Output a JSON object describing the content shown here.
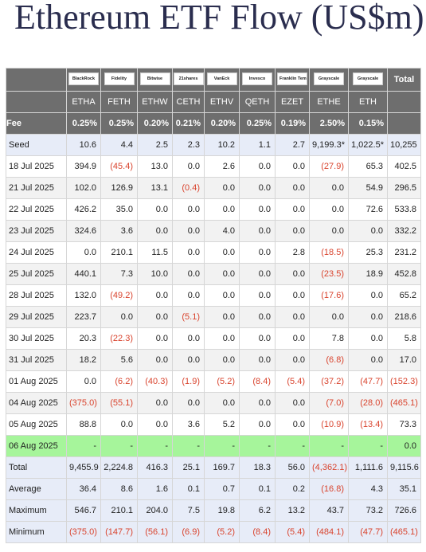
{
  "header": {
    "title": "Ethereum ETF Flow (US$m)"
  },
  "table": {
    "issuers": [
      "BlackRock",
      "Fidelity",
      "Bitwise",
      "21shares",
      "VanEck",
      "Invesco",
      "Franklin Templeton",
      "Grayscale",
      "Grayscale"
    ],
    "total_header": "Total",
    "tickers": [
      "ETHA",
      "FETH",
      "ETHW",
      "CETH",
      "ETHV",
      "QETH",
      "EZET",
      "ETHE",
      "ETH"
    ],
    "fee_label": "Fee",
    "fees": [
      "0.25%",
      "0.25%",
      "0.20%",
      "0.21%",
      "0.20%",
      "0.25%",
      "0.19%",
      "2.50%",
      "0.15%"
    ],
    "rows": [
      [
        "Seed",
        "10.6",
        "4.4",
        "2.5",
        "2.3",
        "10.2",
        "1.1",
        "2.7",
        "9,199.3*",
        "1,022.5*",
        "10,255"
      ],
      [
        "18 Jul 2025",
        "394.9",
        "(45.4)",
        "13.0",
        "0.0",
        "2.6",
        "0.0",
        "0.0",
        "(27.9)",
        "65.3",
        "402.5"
      ],
      [
        "21 Jul 2025",
        "102.0",
        "126.9",
        "13.1",
        "(0.4)",
        "0.0",
        "0.0",
        "0.0",
        "0.0",
        "54.9",
        "296.5"
      ],
      [
        "22 Jul 2025",
        "426.2",
        "35.0",
        "0.0",
        "0.0",
        "0.0",
        "0.0",
        "0.0",
        "0.0",
        "72.6",
        "533.8"
      ],
      [
        "23 Jul 2025",
        "324.6",
        "3.6",
        "0.0",
        "0.0",
        "4.0",
        "0.0",
        "0.0",
        "0.0",
        "0.0",
        "332.2"
      ],
      [
        "24 Jul 2025",
        "0.0",
        "210.1",
        "11.5",
        "0.0",
        "0.0",
        "0.0",
        "2.8",
        "(18.5)",
        "25.3",
        "231.2"
      ],
      [
        "25 Jul 2025",
        "440.1",
        "7.3",
        "10.0",
        "0.0",
        "0.0",
        "0.0",
        "0.0",
        "(23.5)",
        "18.9",
        "452.8"
      ],
      [
        "28 Jul 2025",
        "132.0",
        "(49.2)",
        "0.0",
        "0.0",
        "0.0",
        "0.0",
        "0.0",
        "(17.6)",
        "0.0",
        "65.2"
      ],
      [
        "29 Jul 2025",
        "223.7",
        "0.0",
        "0.0",
        "(5.1)",
        "0.0",
        "0.0",
        "0.0",
        "0.0",
        "0.0",
        "218.6"
      ],
      [
        "30 Jul 2025",
        "20.3",
        "(22.3)",
        "0.0",
        "0.0",
        "0.0",
        "0.0",
        "0.0",
        "7.8",
        "0.0",
        "5.8"
      ],
      [
        "31 Jul 2025",
        "18.2",
        "5.6",
        "0.0",
        "0.0",
        "0.0",
        "0.0",
        "0.0",
        "(6.8)",
        "0.0",
        "17.0"
      ],
      [
        "01 Aug 2025",
        "0.0",
        "(6.2)",
        "(40.3)",
        "(1.9)",
        "(5.2)",
        "(8.4)",
        "(5.4)",
        "(37.2)",
        "(47.7)",
        "(152.3)"
      ],
      [
        "04 Aug 2025",
        "(375.0)",
        "(55.1)",
        "0.0",
        "0.0",
        "0.0",
        "0.0",
        "0.0",
        "(7.0)",
        "(28.0)",
        "(465.1)"
      ],
      [
        "05 Aug 2025",
        "88.8",
        "0.0",
        "0.0",
        "3.6",
        "5.2",
        "0.0",
        "0.0",
        "(10.9)",
        "(13.4)",
        "73.3"
      ],
      [
        "06 Aug 2025",
        "-",
        "-",
        "-",
        "-",
        "-",
        "-",
        "-",
        "-",
        "-",
        "0.0"
      ],
      [
        "Total",
        "9,455.9",
        "2,224.8",
        "416.3",
        "25.1",
        "169.7",
        "18.3",
        "56.0",
        "(4,362.1)",
        "1,111.6",
        "9,115.6"
      ],
      [
        "Average",
        "36.4",
        "8.6",
        "1.6",
        "0.1",
        "0.7",
        "0.1",
        "0.2",
        "(16.8)",
        "4.3",
        "35.1"
      ],
      [
        "Maximum",
        "546.7",
        "210.1",
        "204.0",
        "7.5",
        "19.8",
        "6.2",
        "13.2",
        "43.7",
        "73.2",
        "726.6"
      ],
      [
        "Minimum",
        "(375.0)",
        "(147.7)",
        "(56.1)",
        "(6.9)",
        "(5.2)",
        "(8.4)",
        "(5.4)",
        "(484.1)",
        "(47.7)",
        "(465.1)"
      ]
    ]
  }
}
